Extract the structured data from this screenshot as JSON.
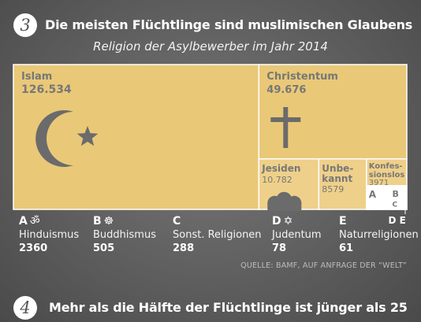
{
  "section3": {
    "number": "3",
    "heading": "Die meisten Flüchtlinge sind muslimischen Glaubens"
  },
  "section4": {
    "number": "4",
    "heading": "Mehr als die Hälfte der Flüchtlinge ist jünger als 25"
  },
  "source": "QUELLE: BAMF, AUF ANFRAGE DER “WELT”",
  "colors": {
    "box": "#e9c878",
    "box_light": "#efd08a",
    "white": "#ffffff",
    "text": "#777777",
    "icon": "#6b6b6b"
  },
  "chart_data": {
    "type": "treemap",
    "subtitle": "Religion der Asylbewerber im Jahr 2014",
    "items": [
      {
        "name": "Islam",
        "value": 126534,
        "value_label": "126.534",
        "icon": "crescent-star-icon"
      },
      {
        "name": "Christentum",
        "value": 49676,
        "value_label": "49.676",
        "icon": "cross-icon"
      },
      {
        "name": "Jesiden",
        "value": 10782,
        "value_label": "10.782",
        "icon": "temple-icon"
      },
      {
        "name": "Unbe-kannt",
        "name_lines": [
          "Unbe-",
          "kannt"
        ],
        "value": 8579,
        "value_label": "8579"
      },
      {
        "name": "Konfessionslos",
        "name_lines": [
          "Konfes-",
          "sionslos"
        ],
        "value": 3971,
        "value_label": "3971"
      }
    ],
    "small_items": [
      {
        "letter": "A",
        "name": "Hinduismus",
        "value": 2360,
        "value_label": "2360",
        "icon": "om-icon",
        "symbol": "ॐ"
      },
      {
        "letter": "B",
        "name": "Buddhismus",
        "value": 505,
        "value_label": "505",
        "icon": "dharma-wheel-icon",
        "symbol": "☸"
      },
      {
        "letter": "C",
        "name": "Sonst. Religionen",
        "value": 288,
        "value_label": "288",
        "symbol": ""
      },
      {
        "letter": "D",
        "name": "Judentum",
        "value": 78,
        "value_label": "78",
        "icon": "star-of-david-icon",
        "symbol": "✡"
      },
      {
        "letter": "E",
        "name": "Naturreligionen",
        "value": 61,
        "value_label": "61",
        "symbol": ""
      }
    ],
    "small_corner_label": "D E"
  }
}
